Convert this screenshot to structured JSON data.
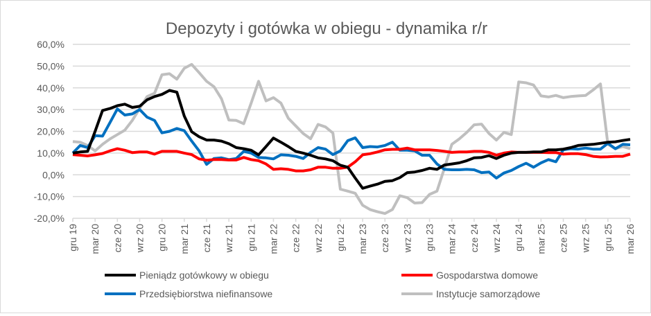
{
  "chart_data": {
    "type": "line",
    "title": "Depozyty i gotówka w obiegu - dynamika r/r",
    "xlabel": "",
    "ylabel": "",
    "ylim": [
      -20,
      60
    ],
    "yticks": [
      "60,0%",
      "50,0%",
      "40,0%",
      "30,0%",
      "20,0%",
      "10,0%",
      "0,0%",
      "-10,0%",
      "-20,0%"
    ],
    "ytick_values": [
      60,
      50,
      40,
      30,
      20,
      10,
      0,
      -10,
      -20
    ],
    "x_start": "gru 19",
    "x_end": "mar 26",
    "x_ticks": [
      "gru 19",
      "mar 20",
      "cze 20",
      "wrz 20",
      "gru 20",
      "mar 21",
      "cze 21",
      "wrz 21",
      "gru 21",
      "mar 22",
      "cze 22",
      "wrz 22",
      "gru 22",
      "mar 23",
      "cze 23",
      "wrz 23",
      "gru 23",
      "mar 24",
      "cze 24",
      "wrz 24",
      "gru 24",
      "mar 25",
      "cze 25",
      "wrz 25",
      "gru 25",
      "mar 26"
    ],
    "grid": true,
    "legend_position": "bottom",
    "series": [
      {
        "name": "Pieniądz gotówkowy w obiegu",
        "color": "#000000",
        "values": [
          10,
          10.5,
          10.8,
          20,
          29.6,
          30.5,
          31.8,
          32.5,
          31,
          31.5,
          34.5,
          36,
          37,
          38.8,
          38,
          27,
          19.8,
          17.5,
          16,
          16,
          15.5,
          14.3,
          12.5,
          12,
          11.3,
          9.2,
          13,
          16.9,
          15,
          13,
          10.8,
          10,
          9,
          7.8,
          7.3,
          6.5,
          4.4,
          3.5,
          -1.5,
          -6.2,
          -5.2,
          -4.3,
          -3,
          -2.7,
          -1.3,
          1,
          1.3,
          2,
          3,
          2.5,
          4.5,
          5,
          5.5,
          6.5,
          7.8,
          8,
          8.8,
          7.5,
          9,
          10,
          10.3,
          10.3,
          10.5,
          10.5,
          11.5,
          11.5,
          11.8,
          12.5,
          13.5,
          13.8,
          14,
          14.5,
          15,
          15.2,
          15.8,
          16.3
        ]
      },
      {
        "name": "Gospodarstwa domowe",
        "color": "#ff0000",
        "values": [
          9.3,
          9,
          8.7,
          9.2,
          9.8,
          11,
          12,
          11.3,
          10.2,
          10.5,
          10.5,
          9.5,
          10.8,
          10.8,
          10.8,
          10,
          9.3,
          7.3,
          6.7,
          7,
          7,
          6.8,
          6.8,
          8,
          7,
          6.5,
          5,
          2.5,
          2.8,
          2.5,
          1.8,
          1.8,
          2.3,
          3.5,
          3.5,
          3,
          3,
          3.5,
          6,
          9.2,
          9.7,
          10.5,
          11.5,
          11.7,
          11.7,
          12.3,
          11.5,
          11.5,
          11.5,
          11.2,
          10.8,
          10.3,
          10.5,
          10.5,
          10.8,
          10.8,
          10.3,
          9,
          10,
          10.5,
          10.3,
          10.3,
          10.3,
          10.3,
          10.2,
          10.2,
          9.5,
          9.7,
          9.7,
          9.3,
          8.5,
          8.2,
          8.3,
          8.5,
          8.5,
          9.5
        ]
      },
      {
        "name": "Przedsiębiorstwa niefinansowe",
        "color": "#0070c0",
        "values": [
          10,
          13.5,
          12.5,
          18,
          17.8,
          24,
          30.3,
          27.5,
          28,
          30,
          26.5,
          25,
          19.3,
          20,
          21.3,
          20.3,
          15.5,
          11,
          4.8,
          7.5,
          7.8,
          7,
          7.5,
          10.8,
          10,
          8,
          7.8,
          7.3,
          9.2,
          9,
          8.5,
          7.5,
          10.3,
          12.5,
          11.8,
          9.3,
          11,
          15.7,
          17,
          12.5,
          13,
          12.8,
          13.5,
          15,
          11.3,
          11.3,
          11,
          9,
          9,
          5,
          2.5,
          2.3,
          2.3,
          2.5,
          2.3,
          1,
          1.3,
          -1.5,
          0.8,
          2,
          3.8,
          5.3,
          3.5,
          5.5,
          7,
          6,
          11.5,
          12,
          11.8,
          12.3,
          11.8,
          11.8,
          14.5,
          12,
          14,
          13.8
        ]
      },
      {
        "name": "Instytucje samorządowe",
        "color": "#bfbfbf",
        "values": [
          15.3,
          15,
          13.5,
          11,
          14,
          16.5,
          18.5,
          20.5,
          25,
          30.5,
          36,
          37.5,
          46,
          46.5,
          44,
          49,
          50.8,
          47,
          43,
          40.5,
          35,
          25.2,
          25,
          23.5,
          33,
          43,
          34,
          35.5,
          33,
          26,
          22.5,
          19,
          16.6,
          23.2,
          22,
          19.2,
          -6.6,
          -7.5,
          -8.5,
          -14,
          -16,
          -17,
          -17.8,
          -16,
          -9.6,
          -10.5,
          -13,
          -12.8,
          -9,
          -7.5,
          3,
          14,
          16.5,
          19.5,
          23,
          23.3,
          19,
          16,
          19.5,
          18.5,
          42.7,
          42.3,
          41.3,
          36.3,
          35.8,
          36.5,
          35.5,
          36,
          36.3,
          36.5,
          39,
          41.8,
          14,
          12,
          13,
          12
        ]
      }
    ]
  }
}
